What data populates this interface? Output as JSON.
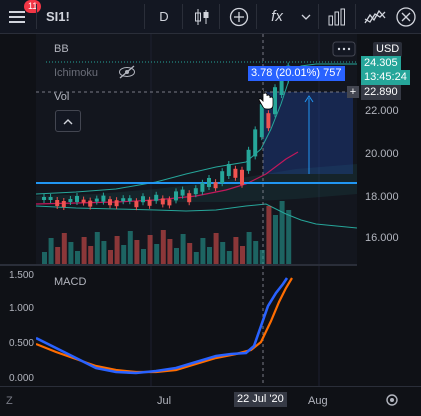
{
  "toolbar": {
    "notifications": "11",
    "symbol": "SI1!",
    "interval": "D",
    "fx_label": "fx"
  },
  "legend": {
    "bb": "BB",
    "ichimoku": "Ichimoku",
    "vol": "Vol"
  },
  "price_axis": {
    "currency": "USD",
    "labels": [
      "22.000",
      "20.000",
      "18.000",
      "16.000"
    ]
  },
  "tags": {
    "last_price": "24.305",
    "countdown": "13:45:24",
    "crosshair_price": "22.890",
    "measure": "3.78 (20.01%) 757"
  },
  "macd": {
    "title": "MACD",
    "labels": [
      "1.500",
      "1.000",
      "0.500",
      "0.000"
    ]
  },
  "time_axis": {
    "labels": [
      "Jul",
      "Aug"
    ],
    "crosshair_date": "22 Jul '20"
  },
  "colors": {
    "macd_line": "#2962ff",
    "signal_line": "#ff6d00",
    "up": "#26a69a",
    "down": "#ef5350",
    "highlight_line": "#2196f3"
  }
}
